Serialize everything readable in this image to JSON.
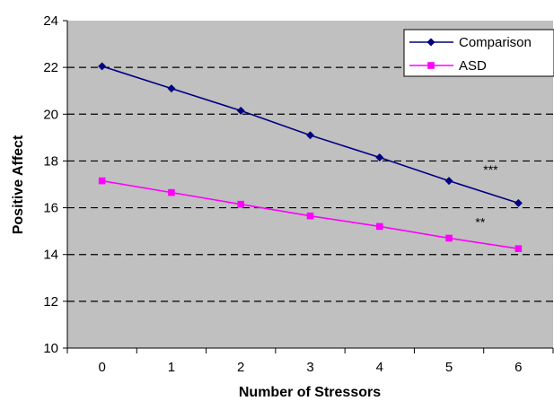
{
  "chart_data": {
    "type": "line",
    "title": "",
    "xlabel": "Number of Stressors",
    "ylabel": "Positive Affect",
    "x": [
      0,
      1,
      2,
      3,
      4,
      5,
      6
    ],
    "xlim": [
      -0.5,
      6.5
    ],
    "ylim": [
      10,
      24
    ],
    "yticks": [
      10,
      12,
      14,
      16,
      18,
      20,
      22,
      24
    ],
    "grid": true,
    "legend_position": "top-right",
    "plot_background": "#c0c0c0",
    "series": [
      {
        "name": "Comparison",
        "marker": "diamond",
        "color": "#000080",
        "values": [
          22.05,
          21.1,
          20.15,
          19.1,
          18.15,
          17.15,
          16.2
        ]
      },
      {
        "name": "ASD",
        "marker": "square",
        "color": "#ff00ff",
        "values": [
          17.15,
          16.65,
          16.15,
          15.65,
          15.2,
          14.7,
          14.25
        ]
      }
    ],
    "annotations": [
      {
        "text": "***",
        "x": 5.6,
        "y": 17.45
      },
      {
        "text": "**",
        "x": 5.45,
        "y": 15.2
      }
    ]
  }
}
